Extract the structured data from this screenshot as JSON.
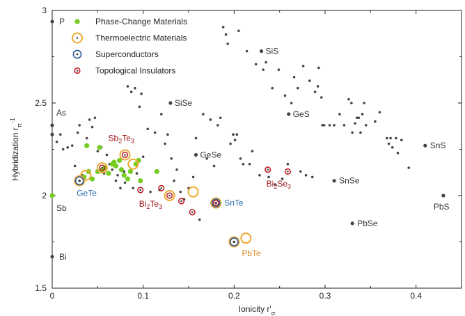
{
  "chart_data": {
    "type": "scatter",
    "xlabel": "Ionicity r'",
    "xlabel_sub": "σ",
    "ylabel": "Hybridization r",
    "ylabel_sub": "π",
    "ylabel_sup": "-1",
    "xlim": [
      0,
      0.45
    ],
    "ylim": [
      1.5,
      3.0
    ],
    "x_ticks": [
      0,
      0.1,
      0.2,
      0.3,
      0.4
    ],
    "x_tick_labels": [
      "0",
      "0.1",
      "0.2",
      "0.3",
      "0.4"
    ],
    "y_ticks": [
      1.5,
      2.0,
      2.5,
      3.0
    ],
    "y_tick_labels": [
      "1.5",
      "2",
      "2.5",
      "3"
    ],
    "grid": false,
    "legend_position": "top-left",
    "legend": [
      {
        "key": "pcm",
        "label": "Phase-Change Materials"
      },
      {
        "key": "te",
        "label": "Thermoelectric Materials"
      },
      {
        "key": "sc",
        "label": "Superconductors"
      },
      {
        "key": "ti",
        "label": "Topological Insulators"
      }
    ],
    "colors": {
      "gray": "#444444",
      "pcm": "#77cc22",
      "te": "#f0a830",
      "sc": "#2a5b9a",
      "ti": "#c0141c",
      "label_sc": "#2a6bb0",
      "label_te": "#d9862a",
      "label_ti": "#9a1010"
    },
    "series": {
      "gray": [
        [
          0.005,
          2.29
        ],
        [
          0.009,
          2.33
        ],
        [
          0.012,
          2.25
        ],
        [
          0.017,
          2.26
        ],
        [
          0.022,
          2.27
        ],
        [
          0.025,
          2.16
        ],
        [
          0.028,
          2.34
        ],
        [
          0.03,
          2.38
        ],
        [
          0.033,
          2.11
        ],
        [
          0.038,
          2.31
        ],
        [
          0.041,
          2.41
        ],
        [
          0.044,
          2.37
        ],
        [
          0.047,
          2.42
        ],
        [
          0.05,
          2.24
        ],
        [
          0.054,
          2.26
        ],
        [
          0.057,
          2.12
        ],
        [
          0.06,
          2.22
        ],
        [
          0.063,
          2.17
        ],
        [
          0.066,
          2.14
        ],
        [
          0.07,
          2.08
        ],
        [
          0.072,
          2.11
        ],
        [
          0.075,
          2.04
        ],
        [
          0.079,
          2.13
        ],
        [
          0.08,
          2.07
        ],
        [
          0.083,
          2.59
        ],
        [
          0.087,
          2.56
        ],
        [
          0.089,
          2.04
        ],
        [
          0.091,
          2.58
        ],
        [
          0.093,
          2.12
        ],
        [
          0.096,
          2.48
        ],
        [
          0.098,
          2.55
        ],
        [
          0.1,
          2.21
        ],
        [
          0.105,
          2.36
        ],
        [
          0.108,
          2.02
        ],
        [
          0.113,
          2.34
        ],
        [
          0.118,
          2.03
        ],
        [
          0.12,
          2.44
        ],
        [
          0.124,
          2.28
        ],
        [
          0.127,
          2.33
        ],
        [
          0.131,
          2.2
        ],
        [
          0.134,
          2.08
        ],
        [
          0.137,
          2.14
        ],
        [
          0.141,
          2.02
        ],
        [
          0.145,
          1.98
        ],
        [
          0.15,
          2.04
        ],
        [
          0.155,
          2.1
        ],
        [
          0.158,
          2.31
        ],
        [
          0.162,
          1.87
        ],
        [
          0.166,
          2.44
        ],
        [
          0.17,
          2.2
        ],
        [
          0.174,
          2.41
        ],
        [
          0.178,
          2.16
        ],
        [
          0.182,
          2.38
        ],
        [
          0.185,
          2.42
        ],
        [
          0.188,
          2.91
        ],
        [
          0.191,
          2.87
        ],
        [
          0.193,
          2.82
        ],
        [
          0.196,
          2.28
        ],
        [
          0.199,
          2.33
        ],
        [
          0.201,
          2.3
        ],
        [
          0.203,
          2.33
        ],
        [
          0.205,
          2.89
        ],
        [
          0.207,
          2.2
        ],
        [
          0.21,
          2.17
        ],
        [
          0.214,
          2.78
        ],
        [
          0.217,
          2.17
        ],
        [
          0.22,
          2.24
        ],
        [
          0.224,
          2.71
        ],
        [
          0.228,
          2.11
        ],
        [
          0.232,
          2.68
        ],
        [
          0.235,
          2.72
        ],
        [
          0.238,
          2.1
        ],
        [
          0.242,
          2.58
        ],
        [
          0.245,
          2.06
        ],
        [
          0.249,
          2.68
        ],
        [
          0.253,
          2.09
        ],
        [
          0.256,
          2.54
        ],
        [
          0.259,
          2.17
        ],
        [
          0.263,
          2.5
        ],
        [
          0.266,
          2.64
        ],
        [
          0.27,
          2.58
        ],
        [
          0.273,
          2.13
        ],
        [
          0.276,
          2.7
        ],
        [
          0.279,
          2.11
        ],
        [
          0.283,
          2.62
        ],
        [
          0.286,
          2.1
        ],
        [
          0.289,
          2.56
        ],
        [
          0.292,
          2.59
        ],
        [
          0.293,
          2.69
        ],
        [
          0.296,
          2.53
        ],
        [
          0.297,
          2.38
        ],
        [
          0.299,
          2.38
        ],
        [
          0.305,
          2.38
        ],
        [
          0.31,
          2.38
        ],
        [
          0.316,
          2.44
        ],
        [
          0.321,
          2.38
        ],
        [
          0.326,
          2.52
        ],
        [
          0.329,
          2.5
        ],
        [
          0.33,
          2.34
        ],
        [
          0.333,
          2.39
        ],
        [
          0.335,
          2.42
        ],
        [
          0.337,
          2.42
        ],
        [
          0.339,
          2.34
        ],
        [
          0.341,
          2.44
        ],
        [
          0.343,
          2.5
        ],
        [
          0.345,
          2.38
        ],
        [
          0.355,
          2.4
        ],
        [
          0.36,
          2.45
        ],
        [
          0.368,
          2.31
        ],
        [
          0.37,
          2.28
        ],
        [
          0.372,
          2.31
        ],
        [
          0.374,
          2.26
        ],
        [
          0.378,
          2.31
        ],
        [
          0.38,
          2.23
        ],
        [
          0.384,
          2.3
        ],
        [
          0.392,
          2.15
        ]
      ],
      "gray_labeled": [
        {
          "x": 0.0,
          "y": 2.94,
          "label": "P"
        },
        {
          "x": 0.0,
          "y": 2.38,
          "label": "As"
        },
        {
          "x": 0.0,
          "y": 2.33,
          "label": ""
        },
        {
          "x": 0.0,
          "y": 1.67,
          "label": "Bi"
        },
        {
          "x": 0.23,
          "y": 2.78,
          "label": "SiS"
        },
        {
          "x": 0.13,
          "y": 2.5,
          "label": "SiSe"
        },
        {
          "x": 0.26,
          "y": 2.44,
          "label": "GeS"
        },
        {
          "x": 0.158,
          "y": 2.22,
          "label": "GeSe"
        },
        {
          "x": 0.31,
          "y": 2.08,
          "label": "SnSe"
        },
        {
          "x": 0.33,
          "y": 1.85,
          "label": "PbSe"
        },
        {
          "x": 0.41,
          "y": 2.27,
          "label": "SnS"
        },
        {
          "x": 0.43,
          "y": 2.0,
          "label": "PbS"
        }
      ],
      "pcm": [
        [
          0.0,
          2.0
        ],
        [
          0.04,
          2.13
        ],
        [
          0.035,
          2.1
        ],
        [
          0.05,
          2.13
        ],
        [
          0.055,
          2.14
        ],
        [
          0.058,
          2.15
        ],
        [
          0.062,
          2.12
        ],
        [
          0.066,
          2.17
        ],
        [
          0.07,
          2.16
        ],
        [
          0.074,
          2.19
        ],
        [
          0.076,
          2.14
        ],
        [
          0.079,
          2.11
        ],
        [
          0.083,
          2.09
        ],
        [
          0.086,
          2.13
        ],
        [
          0.092,
          2.17
        ],
        [
          0.097,
          2.08
        ],
        [
          0.044,
          2.09
        ],
        [
          0.038,
          2.27
        ],
        [
          0.052,
          2.26
        ],
        [
          0.115,
          2.13
        ],
        [
          0.095,
          2.19
        ],
        [
          0.068,
          2.18
        ]
      ],
      "te": [
        [
          0.03,
          2.08
        ],
        [
          0.037,
          2.11
        ],
        [
          0.08,
          2.22
        ],
        [
          0.089,
          2.17
        ],
        [
          0.129,
          2.0
        ],
        [
          0.155,
          2.02
        ],
        [
          0.2,
          1.75
        ],
        [
          0.213,
          1.77
        ],
        [
          0.18,
          1.96
        ],
        [
          0.055,
          2.15
        ]
      ],
      "sc": [
        [
          0.03,
          2.08
        ],
        [
          0.18,
          1.96
        ],
        [
          0.2,
          1.75
        ]
      ],
      "ti": [
        [
          0.055,
          2.15
        ],
        [
          0.08,
          2.22
        ],
        [
          0.097,
          2.03
        ],
        [
          0.12,
          2.04
        ],
        [
          0.129,
          2.0
        ],
        [
          0.142,
          1.97
        ],
        [
          0.154,
          1.91
        ],
        [
          0.18,
          1.96
        ],
        [
          0.237,
          2.14
        ],
        [
          0.259,
          2.13
        ]
      ]
    },
    "annotations": [
      {
        "text": "P",
        "sub": "",
        "x": 0.0,
        "y": 2.94,
        "dx": 10,
        "dy": 4,
        "color": "gray_text"
      },
      {
        "text": "As",
        "sub": "",
        "x": 0.0,
        "y": 2.38,
        "dx": 6,
        "dy": -14,
        "color": "gray_text"
      },
      {
        "text": "Sb",
        "sub": "",
        "x": 0.0,
        "y": 2.0,
        "dx": 6,
        "dy": 22,
        "color": "gray_text"
      },
      {
        "text": "Bi",
        "sub": "",
        "x": 0.0,
        "y": 1.67,
        "dx": 10,
        "dy": 4,
        "color": "gray_text"
      },
      {
        "text": "SiS",
        "sub": "",
        "x": 0.23,
        "y": 2.78,
        "dx": 6,
        "dy": 4,
        "color": "gray_text"
      },
      {
        "text": "SiSe",
        "sub": "",
        "x": 0.13,
        "y": 2.5,
        "dx": 6,
        "dy": 4,
        "color": "gray_text"
      },
      {
        "text": "GeS",
        "sub": "",
        "x": 0.26,
        "y": 2.44,
        "dx": 6,
        "dy": 4,
        "color": "gray_text"
      },
      {
        "text": "GeSe",
        "sub": "",
        "x": 0.158,
        "y": 2.22,
        "dx": 6,
        "dy": 4,
        "color": "gray_text"
      },
      {
        "text": "SnSe",
        "sub": "",
        "x": 0.31,
        "y": 2.08,
        "dx": 7,
        "dy": 4,
        "color": "gray_text"
      },
      {
        "text": "PbSe",
        "sub": "",
        "x": 0.33,
        "y": 1.85,
        "dx": 7,
        "dy": 4,
        "color": "gray_text"
      },
      {
        "text": "SnS",
        "sub": "",
        "x": 0.41,
        "y": 2.27,
        "dx": 7,
        "dy": 4,
        "color": "gray_text"
      },
      {
        "text": "PbS",
        "sub": "",
        "x": 0.43,
        "y": 2.0,
        "dx": -14,
        "dy": 20,
        "color": "gray_text"
      },
      {
        "text": "GeTe",
        "sub": "",
        "x": 0.03,
        "y": 2.08,
        "dx": -4,
        "dy": 22,
        "color": "label_sc"
      },
      {
        "text": "SnTe",
        "sub": "",
        "x": 0.18,
        "y": 1.96,
        "dx": 12,
        "dy": 4,
        "color": "label_sc"
      },
      {
        "text": "PbTe",
        "sub": "",
        "x": 0.213,
        "y": 1.77,
        "dx": -6,
        "dy": 26,
        "color": "label_te"
      },
      {
        "text": "Sb",
        "sub": "2",
        "tail": "Te",
        "sub2": "3",
        "x": 0.08,
        "y": 2.22,
        "dx": -24,
        "dy": -20,
        "color": "label_ti"
      },
      {
        "text": "Bi",
        "sub": "2",
        "tail": "Te",
        "sub2": "3",
        "x": 0.097,
        "y": 2.03,
        "dx": -2,
        "dy": 24,
        "color": "label_ti"
      },
      {
        "text": "Bi",
        "sub": "2",
        "tail": "Se",
        "sub2": "3",
        "x": 0.237,
        "y": 2.14,
        "dx": -2,
        "dy": 24,
        "color": "label_ti"
      }
    ]
  }
}
